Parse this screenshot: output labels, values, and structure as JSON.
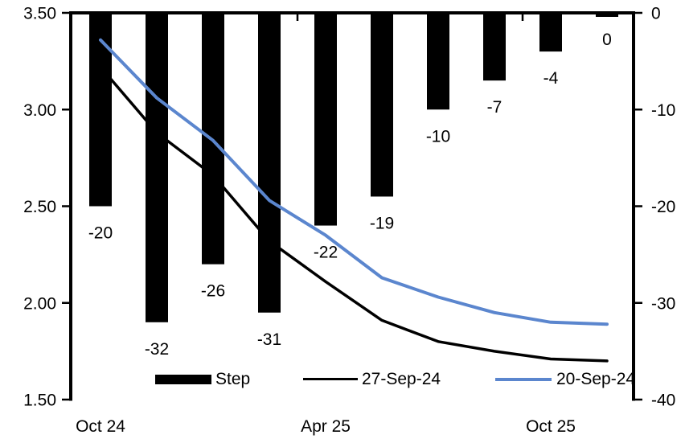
{
  "chart_data": {
    "type": "combo-bar-line",
    "title": "",
    "background": "#FFFFFF",
    "grid": false,
    "x_axis": {
      "n_slots": 10,
      "tick_labels": [
        {
          "label": "Oct 24",
          "slot": 0
        },
        {
          "label": "Apr 25",
          "slot": 4
        },
        {
          "label": "Oct 25",
          "slot": 8
        }
      ],
      "boundary_ticks_at_slots": [
        4,
        8
      ]
    },
    "left_axis": {
      "min": 1.5,
      "max": 3.5,
      "tick_labels": [
        "3.50",
        "3.00",
        "2.50",
        "2.00",
        "1.50"
      ]
    },
    "right_axis": {
      "min": -40,
      "max": 0,
      "tick_labels": [
        "0",
        "-10",
        "-20",
        "-30",
        "-40"
      ]
    },
    "bars": {
      "name": "Step",
      "axis": "right",
      "color": "#000000",
      "values": [
        -20,
        -32,
        -26,
        -31,
        -22,
        -19,
        -10,
        -7,
        -4,
        0
      ],
      "data_labels": [
        "-20",
        "-32",
        "-26",
        "-31",
        "-22",
        "-19",
        "-10",
        "-7",
        "-4",
        "0"
      ]
    },
    "series": [
      {
        "name": "27-Sep-24",
        "axis": "left",
        "color": "#000000",
        "stroke_width": 3.5,
        "values": [
          3.22,
          2.88,
          2.66,
          2.32,
          2.11,
          1.91,
          1.8,
          1.75,
          1.71,
          1.7
        ]
      },
      {
        "name": "20-Sep-24",
        "axis": "left",
        "color": "#5B86CE",
        "stroke_width": 4,
        "values": [
          3.36,
          3.06,
          2.84,
          2.53,
          2.35,
          2.13,
          2.03,
          1.95,
          1.9,
          1.89
        ]
      }
    ],
    "legend": {
      "position": "bottom-inside",
      "items": [
        {
          "label": "Step",
          "type": "bar",
          "color": "#000000"
        },
        {
          "label": "27-Sep-24",
          "type": "line",
          "color": "#000000"
        },
        {
          "label": "20-Sep-24",
          "type": "line",
          "color": "#5B86CE"
        }
      ]
    }
  }
}
